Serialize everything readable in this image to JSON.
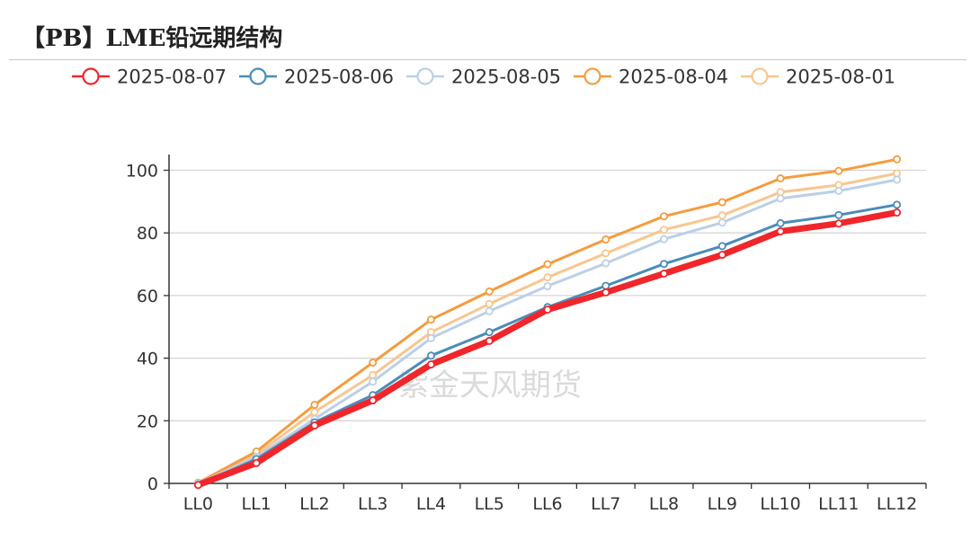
{
  "title": "【PB】LME铅远期结构",
  "watermark": "紫金天风期货",
  "chart_data": {
    "type": "line",
    "title": "【PB】LME铅远期结构",
    "categories": [
      "LL0",
      "LL1",
      "LL2",
      "LL3",
      "LL4",
      "LL5",
      "LL6",
      "LL7",
      "LL8",
      "LL9",
      "LL10",
      "LL11",
      "LL12"
    ],
    "ylim": [
      0,
      105
    ],
    "yticks": [
      0,
      20,
      40,
      60,
      80,
      100
    ],
    "grid": true,
    "legend_position": "top",
    "series": [
      {
        "name": "2025-08-07",
        "color": "#f0262b",
        "width": 7,
        "values": [
          -0.5,
          6.5,
          18.5,
          26.5,
          38,
          45.5,
          55.5,
          61,
          67,
          73,
          80.5,
          83,
          86.5
        ]
      },
      {
        "name": "2025-08-06",
        "color": "#4a8cb9",
        "width": 3,
        "values": [
          -0.5,
          7.8,
          19.5,
          28.2,
          40.8,
          48.3,
          56.3,
          63.1,
          70.1,
          75.8,
          83.1,
          85.7,
          89
        ]
      },
      {
        "name": "2025-08-05",
        "color": "#bccfe6",
        "width": 3,
        "values": [
          0,
          8.5,
          20.6,
          32.5,
          46.4,
          55,
          63,
          70.3,
          78,
          83.3,
          91,
          93.4,
          97
        ]
      },
      {
        "name": "2025-08-04",
        "color": "#f59c3d",
        "width": 3,
        "values": [
          0.2,
          10.2,
          25.1,
          38.6,
          52.3,
          61.3,
          70,
          77.9,
          85.3,
          89.8,
          97.4,
          99.8,
          103.5
        ]
      },
      {
        "name": "2025-08-01",
        "color": "#f8c68f",
        "width": 3,
        "values": [
          0.2,
          9.3,
          22.8,
          34.6,
          48.3,
          57.3,
          65.8,
          73.5,
          81,
          85.6,
          93,
          95.3,
          99
        ]
      }
    ]
  }
}
